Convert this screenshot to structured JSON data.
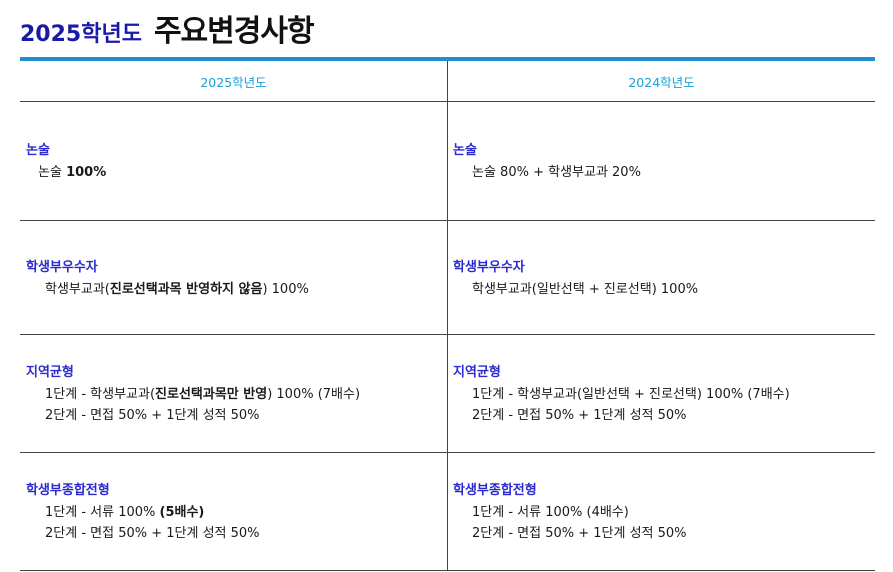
{
  "header": {
    "year_title": "2025학년도",
    "main_title": "주요변경사항"
  },
  "columns": [
    "2025학년도",
    "2024학년도"
  ],
  "rows": [
    {
      "left": {
        "category": "논술",
        "lines": [
          [
            {
              "t": "논술 ",
              "b": false
            },
            {
              "t": "100%",
              "b": true
            }
          ]
        ]
      },
      "right": {
        "category": "논술",
        "lines": [
          [
            {
              "t": "논술 80% + 학생부교과 20%",
              "b": false
            }
          ]
        ]
      }
    },
    {
      "left": {
        "category": "학생부우수자",
        "lines": [
          [
            {
              "t": "학생부교과(",
              "b": false
            },
            {
              "t": "진로선택과목 반영하지 않음",
              "b": true
            },
            {
              "t": ") 100%",
              "b": false
            }
          ]
        ]
      },
      "right": {
        "category": "학생부우수자",
        "lines": [
          [
            {
              "t": "학생부교과(일반선택 + 진로선택) 100%",
              "b": false
            }
          ]
        ]
      }
    },
    {
      "left": {
        "category": "지역균형",
        "lines": [
          [
            {
              "t": "1단계 - 학생부교과(",
              "b": false
            },
            {
              "t": "진로선택과목만 반영",
              "b": true
            },
            {
              "t": ") 100% (7배수)",
              "b": false
            }
          ],
          [
            {
              "t": "2단계 - 면접 50% + 1단계 성적 50%",
              "b": false
            }
          ]
        ]
      },
      "right": {
        "category": "지역균형",
        "lines": [
          [
            {
              "t": "1단계 - 학생부교과(일반선택 + 진로선택) 100% (7배수)",
              "b": false
            }
          ],
          [
            {
              "t": "2단계 - 면접 50% + 1단계 성적 50%",
              "b": false
            }
          ]
        ]
      }
    },
    {
      "left": {
        "category": "학생부종합전형",
        "lines": [
          [
            {
              "t": "1단계 - 서류 100% ",
              "b": false
            },
            {
              "t": "(5배수)",
              "b": true
            }
          ],
          [
            {
              "t": "2단계 - 면접 50% + 1단계 성적 50%",
              "b": false
            }
          ]
        ]
      },
      "right": {
        "category": "학생부종합전형",
        "lines": [
          [
            {
              "t": "1단계 - 서류 100% (4배수)",
              "b": false
            }
          ],
          [
            {
              "t": "2단계 - 면접 50% + 1단계 성적 50%",
              "b": false
            }
          ]
        ]
      }
    }
  ]
}
